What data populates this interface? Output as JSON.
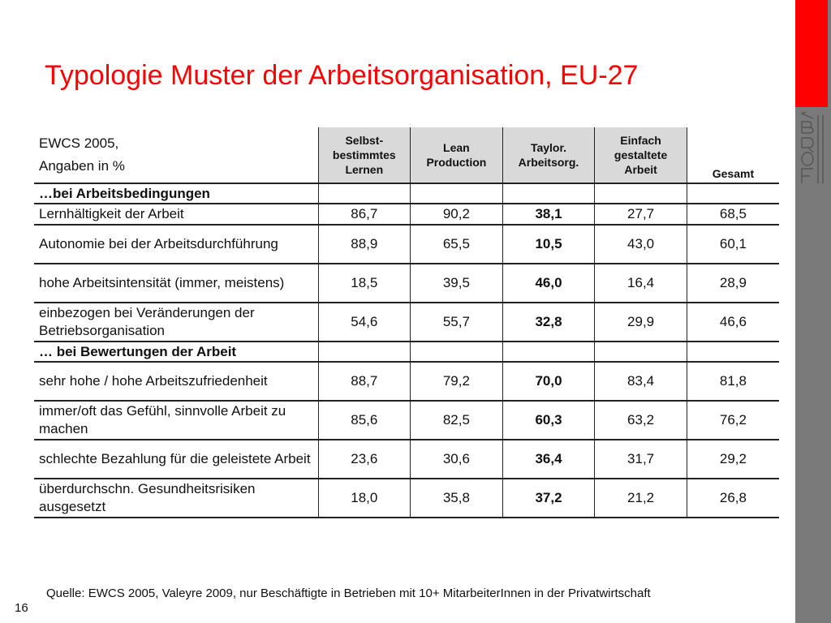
{
  "title": "Typologie  Muster der Arbeitsorganisation, EU-27",
  "logo_text": "FORBA",
  "table": {
    "corner": {
      "line1": "EWCS 2005,",
      "line2": "Angaben in %"
    },
    "columns": [
      {
        "line1": "Selbst-",
        "line2": "bestimmtes",
        "line3": "Lernen"
      },
      {
        "line1": "Lean",
        "line2": "Production",
        "line3": ""
      },
      {
        "line1": "Taylor.",
        "line2": "Arbeitsorg.",
        "line3": ""
      },
      {
        "line1": "Einfach",
        "line2": "gestaltete",
        "line3": "Arbeit"
      },
      {
        "line1": "Gesamt",
        "line2": "",
        "line3": ""
      }
    ],
    "rows": [
      {
        "type": "section",
        "label": "…bei Arbeitsbedingungen"
      },
      {
        "type": "single",
        "label": "  Lernhältigkeit der Arbeit",
        "values": [
          "86,7",
          "90,2",
          "38,1",
          "27,7",
          "68,5"
        ]
      },
      {
        "type": "double",
        "label": "  Autonomie bei der Arbeitsdurchführung",
        "values": [
          "88,9",
          "65,5",
          "10,5",
          "43,0",
          "60,1"
        ]
      },
      {
        "type": "double",
        "label": "  hohe Arbeitsintensität (immer, meistens)",
        "values": [
          "18,5",
          "39,5",
          "46,0",
          "16,4",
          "28,9"
        ]
      },
      {
        "type": "double",
        "label": "  einbezogen bei Veränderungen der Betriebsorganisation",
        "values": [
          "54,6",
          "55,7",
          "32,8",
          "29,9",
          "46,6"
        ]
      },
      {
        "type": "section",
        "label": "… bei Bewertungen der Arbeit"
      },
      {
        "type": "double",
        "label": "  sehr hohe / hohe Arbeitszufriedenheit",
        "values": [
          "88,7",
          "79,2",
          "70,0",
          "83,4",
          "81,8"
        ]
      },
      {
        "type": "double",
        "label": "  immer/oft das Gefühl, sinnvolle Arbeit zu machen",
        "values": [
          "85,6",
          "82,5",
          "60,3",
          "63,2",
          "76,2"
        ]
      },
      {
        "type": "double",
        "label": "  schlechte Bezahlung für die geleistete Arbeit",
        "values": [
          "23,6",
          "30,6",
          "36,4",
          "31,7",
          "29,2"
        ]
      },
      {
        "type": "double",
        "label": "  überdurchschn. Gesundheitsrisiken ausgesetzt",
        "values": [
          "18,0",
          "35,8",
          "37,2",
          "21,2",
          "26,8"
        ]
      }
    ]
  },
  "source": "Quelle: EWCS 2005,  Valeyre 2009, nur Beschäftigte in Betrieben mit 10+ MitarbeiterInnen in der Privatwirtschaft",
  "page_number": "16",
  "colors": {
    "accent": "#ff0000",
    "sidebar": "#7a7a7a",
    "header_shade": "#d9d9d9"
  }
}
